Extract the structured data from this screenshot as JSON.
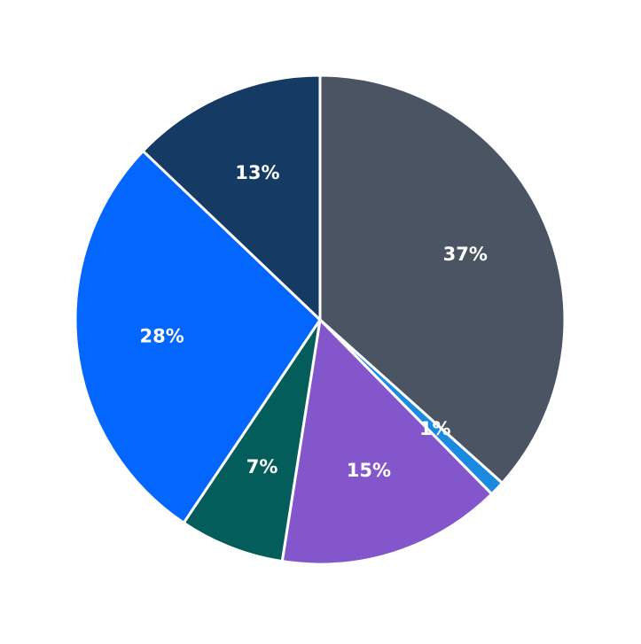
{
  "chart_data": {
    "type": "pie",
    "values": [
      37,
      1,
      15,
      7,
      28,
      13
    ],
    "value_labels": [
      "37%",
      "1%",
      "15%",
      "7%",
      "28%",
      "13%"
    ],
    "colors": [
      "#4a5462",
      "#1a8ae0",
      "#8456cc",
      "#035e5b",
      "#0366ff",
      "#153a63"
    ],
    "start_angle": 90,
    "direction": "clockwise"
  }
}
